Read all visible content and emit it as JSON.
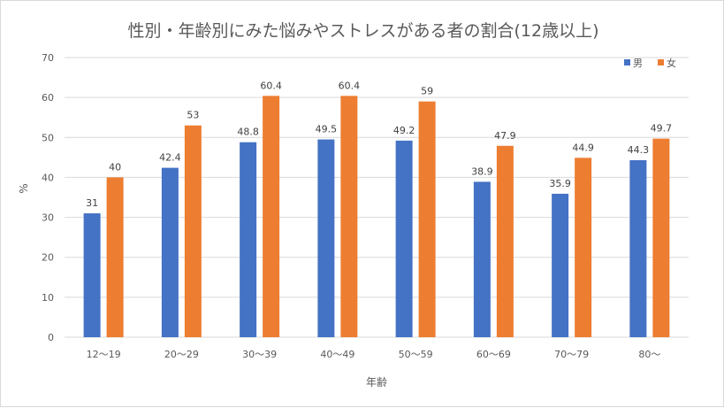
{
  "chart_data": {
    "type": "bar",
    "title": "性別・年齢別にみた悩みやストレスがある者の割合(12歳以上)",
    "xlabel": "年齢",
    "ylabel": "%",
    "categories": [
      "12～19",
      "20～29",
      "30～39",
      "40～49",
      "50～59",
      "60～69",
      "70～79",
      "80～"
    ],
    "series": [
      {
        "name": "男",
        "color": "#4472c4",
        "values": [
          31,
          42.4,
          48.8,
          49.5,
          49.2,
          38.9,
          35.9,
          44.3
        ]
      },
      {
        "name": "女",
        "color": "#ed7d31",
        "values": [
          40,
          53,
          60.4,
          60.4,
          59,
          47.9,
          44.9,
          49.7
        ]
      }
    ],
    "ylim": [
      0,
      70
    ],
    "yticks": [
      0,
      10,
      20,
      30,
      40,
      50,
      60,
      70
    ],
    "grid": true,
    "legend_position": "top-right",
    "data_labels": true
  }
}
